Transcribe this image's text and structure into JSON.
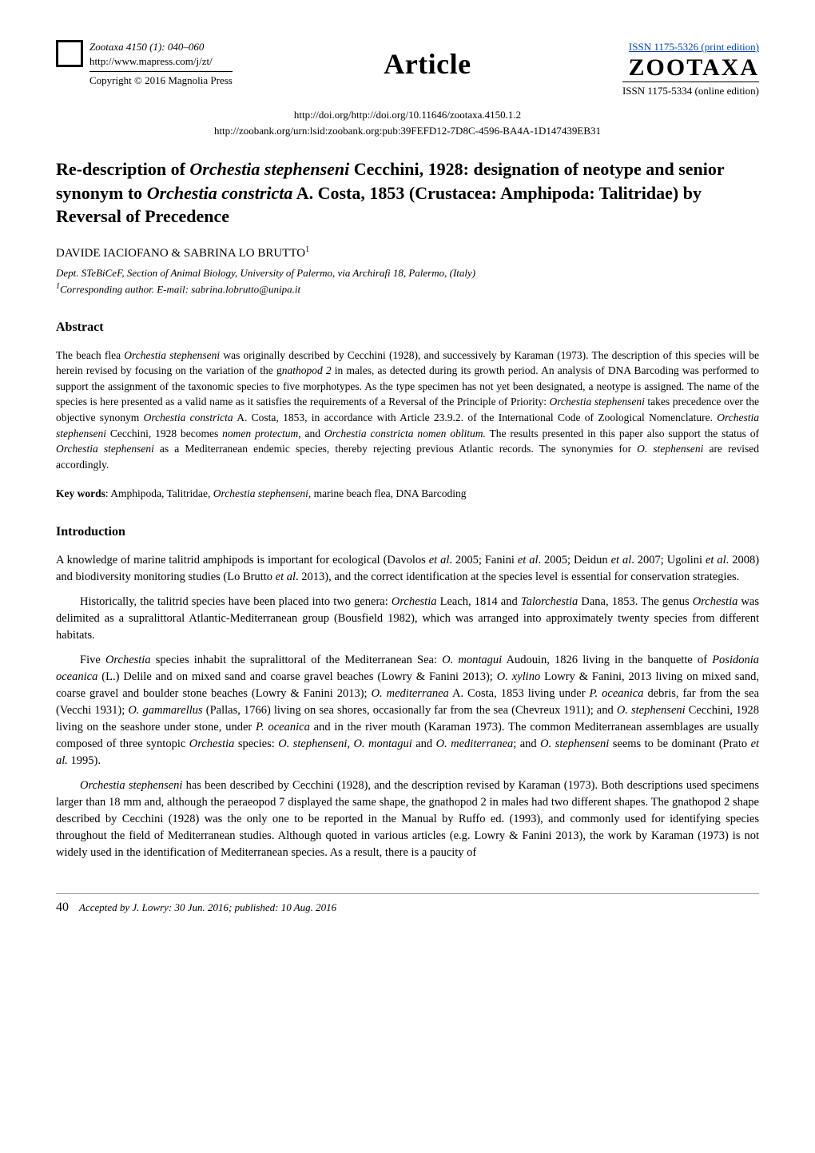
{
  "header": {
    "journal_ref": "Zootaxa 4150 (1): 040–060",
    "url": "http://www.mapress.com/j/zt/",
    "copyright": "Copyright © 2016 Magnolia Press",
    "center_label": "Article",
    "issn_print": "ISSN 1175-5326  (print edition)",
    "zootaxa_big": "ZOOTAXA",
    "issn_online": "ISSN 1175-5334 (online edition)"
  },
  "doi": {
    "line1": "http://doi.org/http://doi.org/10.11646/zootaxa.4150.1.2",
    "line2": "http://zoobank.org/urn:lsid:zoobank.org:pub:39FEFD12-7D8C-4596-BA4A-1D147439EB31"
  },
  "title_parts": {
    "t1": "Re-description of ",
    "t2": "Orchestia stephenseni",
    "t3": " Cecchini, 1928: designation of neotype and senior synonym to ",
    "t4": "Orchestia constricta",
    "t5": " A. Costa, 1853 (Crustacea: Amphipoda: Talitridae) by Reversal of Precedence"
  },
  "authors": {
    "line": "DAVIDE IACIOFANO & SABRINA LO BRUTTO",
    "sup": "1"
  },
  "affiliation": {
    "line1": "Dept. STeBiCeF, Section of Animal Biology, University of Palermo, via Archirafi 18, Palermo, (Italy)",
    "line2_sup": "1",
    "line2": "Corresponding author. E-mail: sabrina.lobrutto@unipa.it"
  },
  "sections": {
    "abstract_h": "Abstract",
    "intro_h": "Introduction"
  },
  "abstract": {
    "p1a": "The beach flea ",
    "p1b": "Orchestia stephenseni",
    "p1c": " was originally described by Cecchini (1928), and successively by Karaman (1973). The description of this species will be herein revised by focusing on the variation of the g",
    "p1c2": "nathopod 2",
    "p1c3": " in males, as detected during its growth period. An analysis of DNA Barcoding was performed to support the assignment of the taxonomic species to five morphotypes. As the type specimen has not yet been designated, a neotype is assigned. The name of the species is here presented as a valid name as it satisfies the requirements of a Reversal of the Principle of Priority: ",
    "p1d": "Orchestia stephenseni",
    "p1e": " takes precedence over the objective synonym ",
    "p1f": "Orchestia constricta",
    "p1g": " A. Costa, 1853, in accordance with Article 23.9.2. of the International Code of Zoological Nomenclature. ",
    "p1h": "Orchestia stephenseni",
    "p1i": " Cecchini, 1928 becomes ",
    "p1j": "nomen protectum",
    "p1k": ", and ",
    "p1l": "Orchestia constricta nomen oblitum.",
    "p1m": " The results presented in this paper also support the status of ",
    "p1n": "Orchestia stephenseni",
    "p1o": " as a Mediterranean endemic species, thereby rejecting previous Atlantic records. The synonymies for ",
    "p1p": "O. stephenseni",
    "p1q": " are revised accordingly."
  },
  "keywords": {
    "label": "Key words",
    "text1": ": Amphipoda, Talitridae, ",
    "text2": "Orchestia stephenseni",
    "text3": ", marine beach flea, DNA Barcoding"
  },
  "intro": {
    "p1a": "A knowledge of marine talitrid amphipods is important for ecological (Davolos ",
    "p1b": "et al",
    "p1c": ". 2005; Fanini ",
    "p1d": "et al",
    "p1e": ". 2005; Deidun ",
    "p1f": "et al",
    "p1g": ". 2007; Ugolini ",
    "p1h": "et al",
    "p1i": ". 2008) and biodiversity monitoring studies (Lo Brutto ",
    "p1j": "et al",
    "p1k": ". 2013), and the correct identification at the species level is essential for conservation strategies.",
    "p2a": "Historically, the talitrid species have been placed into two genera: ",
    "p2b": "Orchestia",
    "p2c": " Leach, 1814 and ",
    "p2d": "Talorchestia",
    "p2e": " Dana, 1853. The genus ",
    "p2f": "Orchestia",
    "p2g": " was delimited as a supralittoral Atlantic-Mediterranean group (Bousfield 1982), which was arranged into approximately twenty species from different habitats.",
    "p3a": "Five ",
    "p3b": "Orchestia",
    "p3c": " species inhabit the supralittoral of the Mediterranean Sea: ",
    "p3d": "O. montagui",
    "p3e": " Audouin, 1826 living in the banquette of ",
    "p3f": "Posidonia oceanica",
    "p3g": " (L.) Delile and on mixed sand and coarse gravel beaches (Lowry & Fanini 2013); ",
    "p3h": "O. xylino",
    "p3i": " Lowry & Fanini, 2013 living on mixed sand, coarse gravel and boulder stone beaches (Lowry & Fanini 2013); ",
    "p3j": "O. mediterranea",
    "p3k": " A. Costa, 1853 living under ",
    "p3l": "P. oceanica",
    "p3m": " debris, far from the sea (Vecchi 1931); ",
    "p3n": "O. gammarellus",
    "p3o": " (Pallas, 1766) living on sea shores, occasionally far from the sea (Chevreux 1911); and ",
    "p3p": "O. stephenseni",
    "p3q": " Cecchini, 1928 living on the seashore under stone, under ",
    "p3r": "P. oceanica",
    "p3s": " and in the river mouth (Karaman 1973). The common Mediterranean assemblages are usually composed of three syntopic ",
    "p3t": "Orchestia",
    "p3u": " species: ",
    "p3v": "O. stephenseni",
    "p3w": ", ",
    "p3x": "O. montagui",
    "p3y": " and ",
    "p3z": "O. mediterranea",
    "p3aa": "; and ",
    "p3ab": "O. stephenseni",
    "p3ac": " seems to be dominant (Prato ",
    "p3ad": "et al.",
    "p3ae": " 1995).",
    "p4a": "Orchestia stephenseni",
    "p4b": " has been described by Cecchini (1928), and the description revised by Karaman (1973). Both descriptions used specimens larger than 18 mm and, although the peraeopod 7 displayed the same shape, the gnathopod 2 in males had two different shapes. The gnathopod 2 shape described by Cecchini (1928) was the only one to be reported in the Manual by Ruffo ed. (1993), and commonly used for identifying species throughout the field of Mediterranean studies. Although quoted in various articles (e.g. Lowry & Fanini 2013), the work by Karaman (1973) is not widely used in the identification of Mediterranean species. As a result, there is a paucity of"
  },
  "footer": {
    "page": "40",
    "accepted": "Accepted by J. Lowry: 30 Jun. 2016; published: 10 Aug. 2016"
  }
}
